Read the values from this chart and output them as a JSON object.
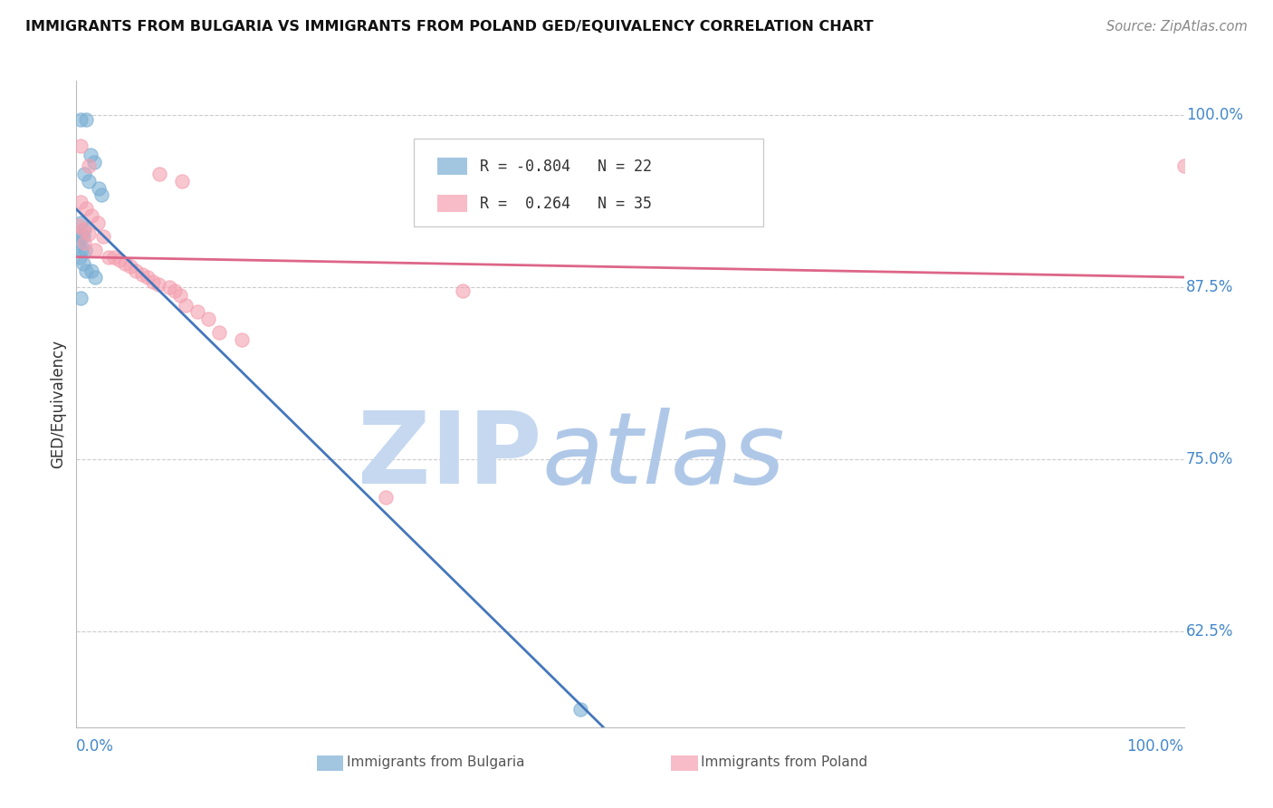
{
  "title": "IMMIGRANTS FROM BULGARIA VS IMMIGRANTS FROM POLAND GED/EQUIVALENCY CORRELATION CHART",
  "source": "Source: ZipAtlas.com",
  "ylabel": "GED/Equivalency",
  "ytick_labels": [
    "62.5%",
    "75.0%",
    "87.5%",
    "100.0%"
  ],
  "ytick_values": [
    0.625,
    0.75,
    0.875,
    1.0
  ],
  "xmin": 0.0,
  "xmax": 1.0,
  "ymin": 0.555,
  "ymax": 1.025,
  "bulgaria_R": -0.804,
  "bulgaria_N": 22,
  "poland_R": 0.264,
  "poland_N": 35,
  "bulgaria_color": "#7bafd4",
  "poland_color": "#f4a0b0",
  "bulgaria_line_color": "#4477bb",
  "poland_line_color": "#dd6688",
  "watermark_zip_color": "#c5d8f0",
  "watermark_atlas_color": "#b0c8e8",
  "bulgaria_scatter": [
    [
      0.004,
      0.997
    ],
    [
      0.009,
      0.997
    ],
    [
      0.013,
      0.971
    ],
    [
      0.016,
      0.966
    ],
    [
      0.007,
      0.957
    ],
    [
      0.011,
      0.952
    ],
    [
      0.02,
      0.947
    ],
    [
      0.023,
      0.942
    ],
    [
      0.004,
      0.922
    ],
    [
      0.007,
      0.917
    ],
    [
      0.004,
      0.912
    ],
    [
      0.006,
      0.912
    ],
    [
      0.002,
      0.907
    ],
    [
      0.005,
      0.902
    ],
    [
      0.008,
      0.902
    ],
    [
      0.003,
      0.897
    ],
    [
      0.006,
      0.892
    ],
    [
      0.009,
      0.887
    ],
    [
      0.014,
      0.887
    ],
    [
      0.017,
      0.882
    ],
    [
      0.004,
      0.867
    ],
    [
      0.455,
      0.568
    ]
  ],
  "poland_scatter": [
    [
      0.004,
      0.978
    ],
    [
      0.011,
      0.963
    ],
    [
      0.075,
      0.957
    ],
    [
      0.095,
      0.952
    ],
    [
      0.004,
      0.937
    ],
    [
      0.009,
      0.932
    ],
    [
      0.014,
      0.927
    ],
    [
      0.019,
      0.922
    ],
    [
      0.002,
      0.92
    ],
    [
      0.006,
      0.917
    ],
    [
      0.011,
      0.914
    ],
    [
      0.024,
      0.912
    ],
    [
      0.007,
      0.907
    ],
    [
      0.017,
      0.902
    ],
    [
      0.029,
      0.897
    ],
    [
      0.034,
      0.897
    ],
    [
      0.039,
      0.895
    ],
    [
      0.044,
      0.892
    ],
    [
      0.049,
      0.89
    ],
    [
      0.054,
      0.887
    ],
    [
      0.059,
      0.884
    ],
    [
      0.064,
      0.882
    ],
    [
      0.069,
      0.879
    ],
    [
      0.074,
      0.877
    ],
    [
      0.084,
      0.875
    ],
    [
      0.089,
      0.872
    ],
    [
      0.094,
      0.869
    ],
    [
      0.099,
      0.862
    ],
    [
      0.109,
      0.857
    ],
    [
      0.119,
      0.852
    ],
    [
      0.129,
      0.842
    ],
    [
      0.149,
      0.837
    ],
    [
      0.279,
      0.722
    ],
    [
      0.349,
      0.872
    ],
    [
      1.0,
      0.963
    ]
  ]
}
